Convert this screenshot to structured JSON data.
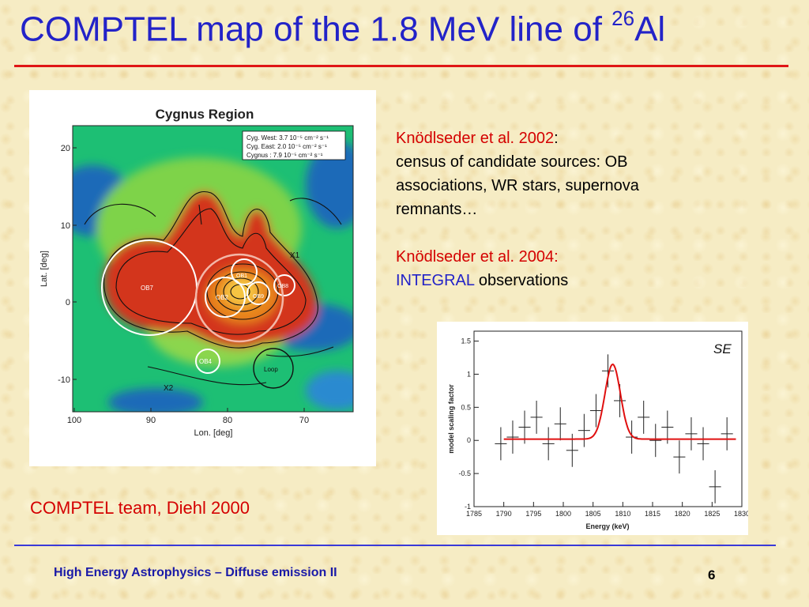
{
  "slide": {
    "title_main": "COMPTEL map of the 1.8 MeV line of ",
    "title_sup": "26",
    "title_end": "Al",
    "ref1_label": "Knödlseder et al. 2002",
    "ref1_colon": ":",
    "ref1_text": "census of candidate sources: OB associations, WR stars, supernova remnants…",
    "ref2_label": "Knödlseder et al. 2004:",
    "ref2_instrument": "INTEGRAL",
    "ref2_text": " observations",
    "credit": "COMPTEL team, Diehl 2000",
    "footer": "High Energy Astrophysics – Diffuse emission II",
    "page_number": "6"
  },
  "cygnus_map": {
    "title": "Cygnus Region",
    "xlabel": "Lon. [deg]",
    "ylabel": "Lat. [deg]",
    "xticks": [
      "100",
      "90",
      "80",
      "70"
    ],
    "yticks": [
      "20",
      "10",
      "0",
      "-10"
    ],
    "legend": [
      "Cyg. West: 3.7 10⁻⁵ cm⁻² s⁻¹",
      "Cyg. East: 2.0 10⁻⁵ cm⁻² s⁻¹",
      "Cygnus   : 7.9 10⁻⁵ cm⁻² s⁻¹"
    ],
    "sources": [
      "OB7",
      "OB1",
      "OB2",
      "OB9",
      "OB8",
      "OB4",
      "Loop"
    ],
    "markers": [
      "X2",
      "X1"
    ]
  },
  "chart_data": {
    "type": "scatter",
    "title": "",
    "annotation": "SE",
    "xlabel": "Energy (keV)",
    "ylabel": "model scaling factor",
    "xlim": [
      1785,
      1830
    ],
    "ylim": [
      -1.0,
      1.65
    ],
    "xticks": [
      1785,
      1790,
      1795,
      1800,
      1805,
      1810,
      1815,
      1820,
      1825,
      1830
    ],
    "yticks": [
      -1,
      -0.5,
      0,
      0.5,
      1,
      1.5
    ],
    "x": [
      1789.5,
      1791.5,
      1793.5,
      1795.5,
      1797.5,
      1799.5,
      1801.5,
      1803.5,
      1805.5,
      1807.5,
      1809.5,
      1811.5,
      1813.5,
      1815.5,
      1817.5,
      1819.5,
      1821.5,
      1823.5,
      1825.5,
      1827.5
    ],
    "y": [
      -0.05,
      0.05,
      0.2,
      0.35,
      -0.05,
      0.25,
      -0.15,
      0.15,
      0.45,
      1.05,
      0.6,
      0.05,
      0.35,
      0.0,
      0.2,
      -0.25,
      0.1,
      -0.05,
      -0.7,
      0.1
    ],
    "yerr": [
      0.25,
      0.25,
      0.25,
      0.25,
      0.25,
      0.25,
      0.25,
      0.25,
      0.25,
      0.25,
      0.25,
      0.25,
      0.25,
      0.25,
      0.25,
      0.25,
      0.25,
      0.25,
      0.25,
      0.25
    ],
    "fit": {
      "baseline": 0.02,
      "amplitude": 1.13,
      "center": 1808.3,
      "sigma": 1.3,
      "color": "#e01010"
    }
  }
}
